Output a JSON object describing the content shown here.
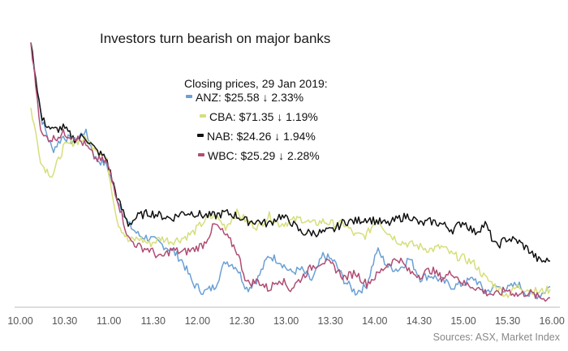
{
  "chart_data": {
    "type": "line",
    "title": "Investors turn bearish on major banks",
    "subtitle": "Closing prices, 29 Jan 2019:",
    "source": "Sources: ASX, Market Index",
    "x_ticks": [
      "10.00",
      "10.30",
      "11.00",
      "11.30",
      "12.00",
      "12.30",
      "13.00",
      "13.30",
      "14.00",
      "14.30",
      "15.00",
      "15.30",
      "16.00"
    ],
    "xlim": [
      "10.00",
      "16.00"
    ],
    "legend_position": "top-center",
    "grid": false,
    "series": [
      {
        "name": "ANZ",
        "legend": "ANZ: $25.58 ↓ 2.33%",
        "color": "#6aa0d4",
        "values": [
          0.93,
          0.66,
          0.55,
          0.6,
          0.58,
          0.62,
          0.52,
          0.5,
          0.38,
          0.29,
          0.25,
          0.24,
          0.22,
          0.2,
          0.16,
          0.08,
          0.05,
          0.07,
          0.16,
          0.14,
          0.06,
          0.1,
          0.18,
          0.16,
          0.12,
          0.13,
          0.09,
          0.18,
          0.16,
          0.09,
          0.05,
          0.07,
          0.2,
          0.14,
          0.13,
          0.17,
          0.1,
          0.11,
          0.09,
          0.07,
          0.08,
          0.1,
          0.05,
          0.07,
          0.06,
          0.08,
          0.04,
          0.04,
          0.07
        ]
      },
      {
        "name": "CBA",
        "legend": "CBA: $71.35 ↓ 1.19%",
        "color": "#d6de7c",
        "values": [
          0.7,
          0.5,
          0.46,
          0.56,
          0.58,
          0.59,
          0.56,
          0.52,
          0.3,
          0.23,
          0.24,
          0.22,
          0.24,
          0.23,
          0.24,
          0.26,
          0.3,
          0.32,
          0.28,
          0.33,
          0.3,
          0.28,
          0.32,
          0.29,
          0.3,
          0.31,
          0.29,
          0.3,
          0.29,
          0.29,
          0.25,
          0.25,
          0.31,
          0.26,
          0.23,
          0.22,
          0.21,
          0.2,
          0.21,
          0.18,
          0.17,
          0.15,
          0.1,
          0.07,
          0.04,
          0.07,
          0.06,
          0.05,
          0.06
        ]
      },
      {
        "name": "NAB",
        "legend": "NAB: $24.26 ↓ 1.94%",
        "color": "#111111",
        "values": [
          0.93,
          0.66,
          0.62,
          0.63,
          0.59,
          0.6,
          0.55,
          0.52,
          0.38,
          0.29,
          0.32,
          0.33,
          0.32,
          0.31,
          0.33,
          0.33,
          0.32,
          0.32,
          0.33,
          0.32,
          0.3,
          0.3,
          0.29,
          0.32,
          0.3,
          0.26,
          0.26,
          0.26,
          0.27,
          0.3,
          0.3,
          0.31,
          0.3,
          0.29,
          0.31,
          0.32,
          0.29,
          0.3,
          0.29,
          0.27,
          0.3,
          0.26,
          0.29,
          0.21,
          0.24,
          0.23,
          0.2,
          0.16,
          0.16
        ]
      },
      {
        "name": "WBC",
        "legend": "WBC: $25.29 ↓ 2.28%",
        "color": "#b04d73",
        "values": [
          0.93,
          0.6,
          0.59,
          0.61,
          0.6,
          0.57,
          0.52,
          0.51,
          0.38,
          0.24,
          0.21,
          0.2,
          0.17,
          0.2,
          0.19,
          0.2,
          0.22,
          0.29,
          0.25,
          0.2,
          0.08,
          0.09,
          0.06,
          0.1,
          0.06,
          0.1,
          0.14,
          0.16,
          0.14,
          0.1,
          0.12,
          0.08,
          0.11,
          0.15,
          0.17,
          0.12,
          0.11,
          0.13,
          0.1,
          0.12,
          0.08,
          0.07,
          0.05,
          0.04,
          0.06,
          0.04,
          0.05,
          0.03,
          0.03
        ]
      }
    ]
  }
}
